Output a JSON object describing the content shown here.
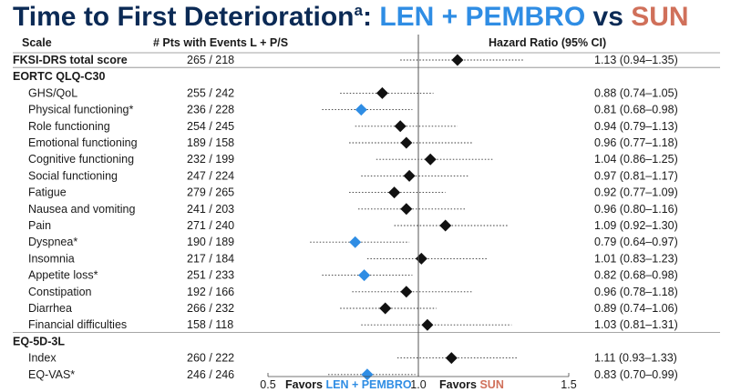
{
  "title": {
    "prefix": "Time to First Deterioration",
    "sup": "a",
    "colon": ": ",
    "arm1": "LEN + PEMBRO",
    "vs": " vs ",
    "arm2": "SUN"
  },
  "headers": {
    "scale": "Scale",
    "pts": "# Pts with Events L + P/S",
    "hr": "Hazard Ratio (95% CI)"
  },
  "footer": {
    "favors_left_prefix": "Favors ",
    "favors_left_arm": "LEN + PEMBRO",
    "favors_right_prefix": "Favors ",
    "favors_right_arm": "SUN"
  },
  "colors": {
    "title": "#0b2a55",
    "len_pembro": "#2f8de4",
    "sun": "#d0705a",
    "marker_default": "#111111",
    "marker_significant": "#2f8de4"
  },
  "chart_data": {
    "type": "forest",
    "x_ticks": [
      "0.5",
      "1.0",
      "1.5"
    ],
    "xlim": [
      0.5,
      1.5
    ],
    "reference_line": 1.0,
    "rows": [
      {
        "kind": "item",
        "label": "FKSI-DRS total score",
        "bold": true,
        "indent": false,
        "events": "265 / 218",
        "hr": 1.13,
        "lo": 0.94,
        "hi": 1.35,
        "ci_text": "1.13 (0.94–1.35)",
        "significant": false
      },
      {
        "kind": "section",
        "label": "EORTC QLQ-C30"
      },
      {
        "kind": "item",
        "label": "GHS/QoL",
        "indent": true,
        "events": "255 / 242",
        "hr": 0.88,
        "lo": 0.74,
        "hi": 1.05,
        "ci_text": "0.88 (0.74–1.05)",
        "significant": false
      },
      {
        "kind": "item",
        "label": "Physical functioning*",
        "indent": true,
        "events": "236 / 228",
        "hr": 0.81,
        "lo": 0.68,
        "hi": 0.98,
        "ci_text": "0.81 (0.68–0.98)",
        "significant": true
      },
      {
        "kind": "item",
        "label": "Role functioning",
        "indent": true,
        "events": "254 / 245",
        "hr": 0.94,
        "lo": 0.79,
        "hi": 1.13,
        "ci_text": "0.94 (0.79–1.13)",
        "significant": false
      },
      {
        "kind": "item",
        "label": "Emotional functioning",
        "indent": true,
        "events": "189 / 158",
        "hr": 0.96,
        "lo": 0.77,
        "hi": 1.18,
        "ci_text": "0.96 (0.77–1.18)",
        "significant": false
      },
      {
        "kind": "item",
        "label": "Cognitive functioning",
        "indent": true,
        "events": "232 / 199",
        "hr": 1.04,
        "lo": 0.86,
        "hi": 1.25,
        "ci_text": "1.04 (0.86–1.25)",
        "significant": false
      },
      {
        "kind": "item",
        "label": "Social functioning",
        "indent": true,
        "events": "247 / 224",
        "hr": 0.97,
        "lo": 0.81,
        "hi": 1.17,
        "ci_text": "0.97 (0.81–1.17)",
        "significant": false
      },
      {
        "kind": "item",
        "label": "Fatigue",
        "indent": true,
        "events": "279 / 265",
        "hr": 0.92,
        "lo": 0.77,
        "hi": 1.09,
        "ci_text": "0.92 (0.77–1.09)",
        "significant": false
      },
      {
        "kind": "item",
        "label": "Nausea and vomiting",
        "indent": true,
        "events": "241 / 203",
        "hr": 0.96,
        "lo": 0.8,
        "hi": 1.16,
        "ci_text": "0.96 (0.80–1.16)",
        "significant": false
      },
      {
        "kind": "item",
        "label": "Pain",
        "indent": true,
        "events": "271 / 240",
        "hr": 1.09,
        "lo": 0.92,
        "hi": 1.3,
        "ci_text": "1.09 (0.92–1.30)",
        "significant": false
      },
      {
        "kind": "item",
        "label": "Dyspnea*",
        "indent": true,
        "events": "190 / 189",
        "hr": 0.79,
        "lo": 0.64,
        "hi": 0.97,
        "ci_text": "0.79 (0.64–0.97)",
        "significant": true
      },
      {
        "kind": "item",
        "label": "Insomnia",
        "indent": true,
        "events": "217 / 184",
        "hr": 1.01,
        "lo": 0.83,
        "hi": 1.23,
        "ci_text": "1.01 (0.83–1.23)",
        "significant": false
      },
      {
        "kind": "item",
        "label": "Appetite loss*",
        "indent": true,
        "events": "251 / 233",
        "hr": 0.82,
        "lo": 0.68,
        "hi": 0.98,
        "ci_text": "0.82 (0.68–0.98)",
        "significant": true
      },
      {
        "kind": "item",
        "label": "Constipation",
        "indent": true,
        "events": "192 / 166",
        "hr": 0.96,
        "lo": 0.78,
        "hi": 1.18,
        "ci_text": "0.96 (0.78–1.18)",
        "significant": false
      },
      {
        "kind": "item",
        "label": "Diarrhea",
        "indent": true,
        "events": "266 / 232",
        "hr": 0.89,
        "lo": 0.74,
        "hi": 1.06,
        "ci_text": "0.89 (0.74–1.06)",
        "significant": false
      },
      {
        "kind": "item",
        "label": "Financial difficulties",
        "indent": true,
        "events": "158 / 118",
        "hr": 1.03,
        "lo": 0.81,
        "hi": 1.31,
        "ci_text": "1.03 (0.81–1.31)",
        "significant": false
      },
      {
        "kind": "section",
        "label": "EQ-5D-3L"
      },
      {
        "kind": "item",
        "label": "Index",
        "indent": true,
        "events": "260 / 222",
        "hr": 1.11,
        "lo": 0.93,
        "hi": 1.33,
        "ci_text": "1.11 (0.93–1.33)",
        "significant": false
      },
      {
        "kind": "item",
        "label": "EQ-VAS*",
        "indent": true,
        "events": "246 / 246",
        "hr": 0.83,
        "lo": 0.7,
        "hi": 0.99,
        "ci_text": "0.83 (0.70–0.99)",
        "significant": true
      }
    ]
  }
}
